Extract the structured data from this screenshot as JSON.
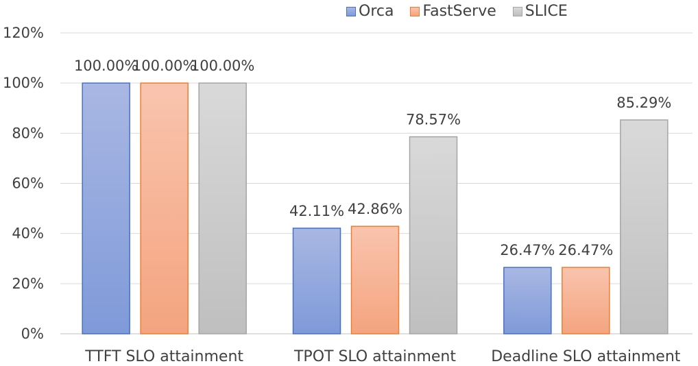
{
  "chart_data": {
    "type": "bar",
    "categories": [
      "TTFT SLO attainment",
      "TPOT SLO attainment",
      "Deadline SLO attainment"
    ],
    "series": [
      {
        "name": "Orca",
        "values": [
          100.0,
          42.11,
          26.47
        ],
        "labels": [
          "100.00%",
          "42.11%",
          "26.47%"
        ],
        "color_top": "#a9b7e3",
        "color_bottom": "#7f9ad9",
        "border": "#4472c4"
      },
      {
        "name": "FastServe",
        "values": [
          100.0,
          42.86,
          26.47
        ],
        "labels": [
          "100.00%",
          "42.86%",
          "26.47%"
        ],
        "color_top": "#f9c4ae",
        "color_bottom": "#f4a47f",
        "border": "#ed7d31"
      },
      {
        "name": "SLICE",
        "values": [
          100.0,
          78.57,
          85.29
        ],
        "labels": [
          "100.00%",
          "78.57%",
          "85.29%"
        ],
        "color_top": "#d9d9d9",
        "color_bottom": "#bfbfbf",
        "border": "#a5a5a5"
      }
    ],
    "yticks": [
      "0%",
      "20%",
      "40%",
      "60%",
      "80%",
      "100%",
      "120%"
    ],
    "ylim": [
      0,
      120
    ],
    "legend_position": "top-right",
    "grid": true,
    "title": "",
    "xlabel": "",
    "ylabel": ""
  }
}
